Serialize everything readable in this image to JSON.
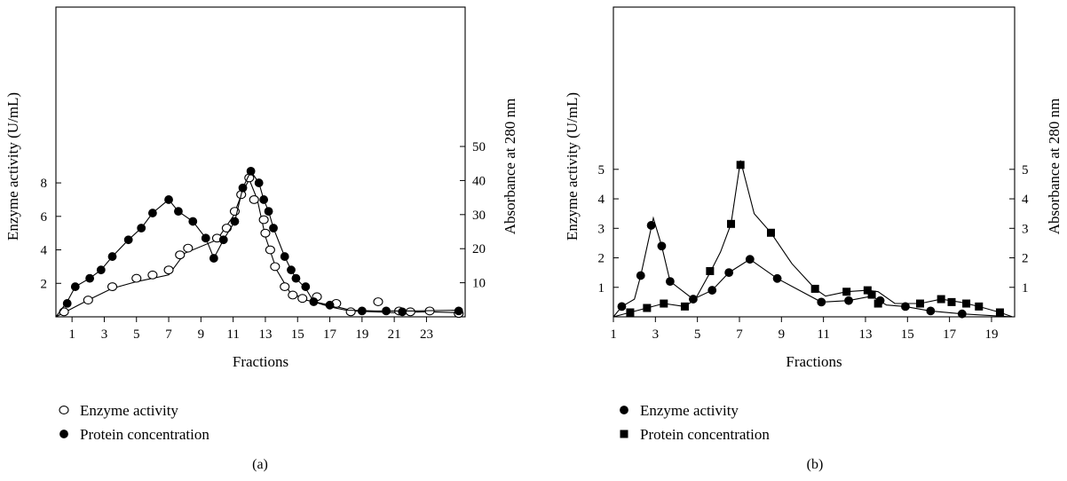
{
  "chart_data": [
    {
      "type": "line",
      "panel_label": "(a)",
      "xlabel": "Fractions",
      "ylabel_left": "Enzyme activity (U/mL)",
      "ylabel_right": "Absorbance at 280 nm",
      "x_ticks": [
        "1",
        "3",
        "5",
        "7",
        "9",
        "11",
        "13",
        "15",
        "17",
        "19",
        "21",
        "23"
      ],
      "xlim": [
        0,
        25.4
      ],
      "y_left_ticks": [
        "2",
        "4",
        "6",
        "8"
      ],
      "y_left_lim": [
        0,
        18.5
      ],
      "y_right_ticks": [
        "10",
        "20",
        "30",
        "40",
        "50"
      ],
      "y_right_lim": [
        0,
        90.9
      ],
      "grid": false,
      "legend": "below-left",
      "series": [
        {
          "name": "Enzyme activity",
          "marker": "open-circle",
          "axis": "left",
          "points": [
            [
              0.5,
              0.3
            ],
            [
              2,
              1.0
            ],
            [
              3.5,
              1.8
            ],
            [
              5,
              2.3
            ],
            [
              6,
              2.5
            ],
            [
              7,
              2.8
            ],
            [
              7.7,
              3.7
            ],
            [
              8.2,
              4.1
            ],
            [
              10,
              4.7
            ],
            [
              10.6,
              5.3
            ],
            [
              11.1,
              6.3
            ],
            [
              11.5,
              7.3
            ],
            [
              12,
              8.3
            ],
            [
              12.3,
              7.0
            ],
            [
              12.9,
              5.8
            ],
            [
              13,
              5.0
            ],
            [
              13.3,
              4.0
            ],
            [
              13.6,
              3.0
            ],
            [
              14.2,
              1.8
            ],
            [
              14.7,
              1.3
            ],
            [
              15.3,
              1.1
            ],
            [
              16.2,
              1.2
            ],
            [
              17.4,
              0.8
            ],
            [
              18.3,
              0.3
            ],
            [
              20,
              0.9
            ],
            [
              21.3,
              0.35
            ],
            [
              22,
              0.3
            ],
            [
              23.2,
              0.35
            ],
            [
              25,
              0.2
            ]
          ],
          "line": [
            [
              0,
              0
            ],
            [
              2,
              1.0
            ],
            [
              3.5,
              1.7
            ],
            [
              5,
              2.1
            ],
            [
              7,
              2.5
            ],
            [
              8,
              3.8
            ],
            [
              10,
              4.6
            ],
            [
              11,
              6.0
            ],
            [
              11.6,
              7.5
            ],
            [
              12,
              8.2
            ],
            [
              12.5,
              7.0
            ],
            [
              13,
              4.8
            ],
            [
              13.7,
              2.8
            ],
            [
              14.5,
              1.5
            ],
            [
              15.5,
              1.0
            ],
            [
              17,
              0.7
            ],
            [
              18.5,
              0.35
            ],
            [
              21,
              0.25
            ],
            [
              23,
              0.3
            ],
            [
              25,
              0.25
            ]
          ]
        },
        {
          "name": "Protein concentration",
          "marker": "filled-circle",
          "axis": "left",
          "points": [
            [
              0.7,
              0.8
            ],
            [
              1.2,
              1.8
            ],
            [
              2.1,
              2.3
            ],
            [
              2.8,
              2.8
            ],
            [
              3.5,
              3.6
            ],
            [
              4.5,
              4.6
            ],
            [
              5.3,
              5.3
            ],
            [
              6,
              6.2
            ],
            [
              7,
              7.0
            ],
            [
              7.6,
              6.3
            ],
            [
              8.5,
              5.7
            ],
            [
              9.3,
              4.7
            ],
            [
              9.8,
              3.5
            ],
            [
              10.4,
              4.6
            ],
            [
              11.1,
              5.7
            ],
            [
              11.6,
              7.7
            ],
            [
              12.1,
              8.7
            ],
            [
              12.6,
              8.0
            ],
            [
              12.9,
              7.0
            ],
            [
              13.2,
              6.3
            ],
            [
              13.5,
              5.3
            ],
            [
              14.2,
              3.6
            ],
            [
              14.6,
              2.8
            ],
            [
              14.9,
              2.3
            ],
            [
              15.5,
              1.8
            ],
            [
              16,
              0.9
            ],
            [
              17,
              0.7
            ],
            [
              19,
              0.35
            ],
            [
              20.5,
              0.35
            ],
            [
              21.5,
              0.3
            ],
            [
              25,
              0.35
            ]
          ],
          "line": [
            [
              0,
              0
            ],
            [
              0.7,
              0.9
            ],
            [
              1.2,
              1.8
            ],
            [
              2.1,
              2.3
            ],
            [
              2.8,
              2.8
            ],
            [
              3.5,
              3.6
            ],
            [
              4.5,
              4.6
            ],
            [
              5.3,
              5.3
            ],
            [
              6,
              6.2
            ],
            [
              7,
              7.0
            ],
            [
              7.6,
              6.3
            ],
            [
              8.5,
              5.7
            ],
            [
              9.3,
              4.7
            ],
            [
              9.8,
              3.5
            ],
            [
              10.4,
              4.6
            ],
            [
              11.1,
              5.7
            ],
            [
              11.6,
              7.7
            ],
            [
              12.1,
              8.7
            ],
            [
              12.6,
              8.0
            ],
            [
              12.9,
              7.0
            ],
            [
              13.2,
              6.3
            ],
            [
              13.5,
              5.3
            ],
            [
              14.2,
              3.6
            ],
            [
              14.6,
              2.8
            ],
            [
              14.9,
              2.3
            ],
            [
              15.5,
              1.7
            ],
            [
              16,
              0.9
            ],
            [
              17,
              0.6
            ],
            [
              18,
              0.4
            ],
            [
              20,
              0.35
            ],
            [
              22,
              0.35
            ],
            [
              25,
              0.4
            ]
          ]
        }
      ]
    },
    {
      "type": "line",
      "panel_label": "(b)",
      "xlabel": "Fractions",
      "ylabel_left": "Enzyme activity (U/mL)",
      "ylabel_right": "Absorbance at 280 nm",
      "x_ticks": [
        "1",
        "3",
        "5",
        "7",
        "9",
        "11",
        "13",
        "15",
        "17",
        "19"
      ],
      "xlim": [
        1,
        20.1
      ],
      "y_left_ticks": [
        "1",
        "2",
        "3",
        "4",
        "5"
      ],
      "y_left_lim": [
        0,
        10.5
      ],
      "y_right_ticks": [
        "1",
        "2",
        "3",
        "4",
        "5"
      ],
      "y_right_lim": [
        0,
        10.5
      ],
      "grid": false,
      "legend": "below-left",
      "series": [
        {
          "name": "Enzyme activity",
          "marker": "filled-circle",
          "axis": "left",
          "points": [
            [
              1.4,
              0.35
            ],
            [
              2.3,
              1.4
            ],
            [
              2.8,
              3.1
            ],
            [
              3.3,
              2.4
            ],
            [
              3.7,
              1.2
            ],
            [
              4.8,
              0.6
            ],
            [
              5.7,
              0.9
            ],
            [
              6.5,
              1.5
            ],
            [
              7.5,
              1.95
            ],
            [
              8.8,
              1.3
            ],
            [
              10.9,
              0.5
            ],
            [
              12.2,
              0.55
            ],
            [
              13.7,
              0.55
            ],
            [
              14.9,
              0.35
            ],
            [
              16.1,
              0.2
            ],
            [
              17.6,
              0.1
            ]
          ],
          "line": [
            [
              1,
              0
            ],
            [
              1.4,
              0.35
            ],
            [
              2,
              0.6
            ],
            [
              2.3,
              1.4
            ],
            [
              2.9,
              3.35
            ],
            [
              3.3,
              2.4
            ],
            [
              3.7,
              1.2
            ],
            [
              4.8,
              0.6
            ],
            [
              5.7,
              0.9
            ],
            [
              6.5,
              1.5
            ],
            [
              7.5,
              1.95
            ],
            [
              8.8,
              1.3
            ],
            [
              10.9,
              0.5
            ],
            [
              12.2,
              0.55
            ],
            [
              13.3,
              0.7
            ],
            [
              14,
              0.4
            ],
            [
              14.9,
              0.35
            ],
            [
              16.1,
              0.2
            ],
            [
              17.6,
              0.1
            ],
            [
              20,
              0
            ]
          ]
        },
        {
          "name": "Protein concentration",
          "marker": "filled-square",
          "axis": "right",
          "points": [
            [
              1.8,
              0.15
            ],
            [
              2.6,
              0.3
            ],
            [
              3.4,
              0.45
            ],
            [
              4.4,
              0.35
            ],
            [
              5.6,
              1.55
            ],
            [
              6.6,
              3.15
            ],
            [
              7.05,
              5.15
            ],
            [
              8.5,
              2.85
            ],
            [
              10.6,
              0.95
            ],
            [
              12.1,
              0.85
            ],
            [
              13.1,
              0.9
            ],
            [
              13.3,
              0.75
            ],
            [
              13.6,
              0.45
            ],
            [
              15.6,
              0.45
            ],
            [
              16.6,
              0.6
            ],
            [
              17.1,
              0.5
            ],
            [
              17.8,
              0.45
            ],
            [
              18.4,
              0.35
            ],
            [
              19.4,
              0.15
            ]
          ],
          "line": [
            [
              1,
              0
            ],
            [
              1.8,
              0.15
            ],
            [
              2.6,
              0.3
            ],
            [
              3.4,
              0.45
            ],
            [
              4.4,
              0.35
            ],
            [
              4.9,
              0.6
            ],
            [
              5.6,
              1.5
            ],
            [
              6.1,
              2.2
            ],
            [
              6.6,
              3.15
            ],
            [
              7.05,
              5.3
            ],
            [
              7.7,
              3.5
            ],
            [
              8.5,
              2.85
            ],
            [
              9.5,
              1.8
            ],
            [
              10.6,
              0.95
            ],
            [
              11.1,
              0.7
            ],
            [
              12.1,
              0.85
            ],
            [
              13.1,
              0.9
            ],
            [
              13.6,
              0.85
            ],
            [
              14.4,
              0.45
            ],
            [
              15.6,
              0.45
            ],
            [
              16.6,
              0.6
            ],
            [
              17.5,
              0.5
            ],
            [
              18.4,
              0.35
            ],
            [
              19.4,
              0.15
            ],
            [
              20,
              0
            ]
          ]
        }
      ]
    }
  ]
}
